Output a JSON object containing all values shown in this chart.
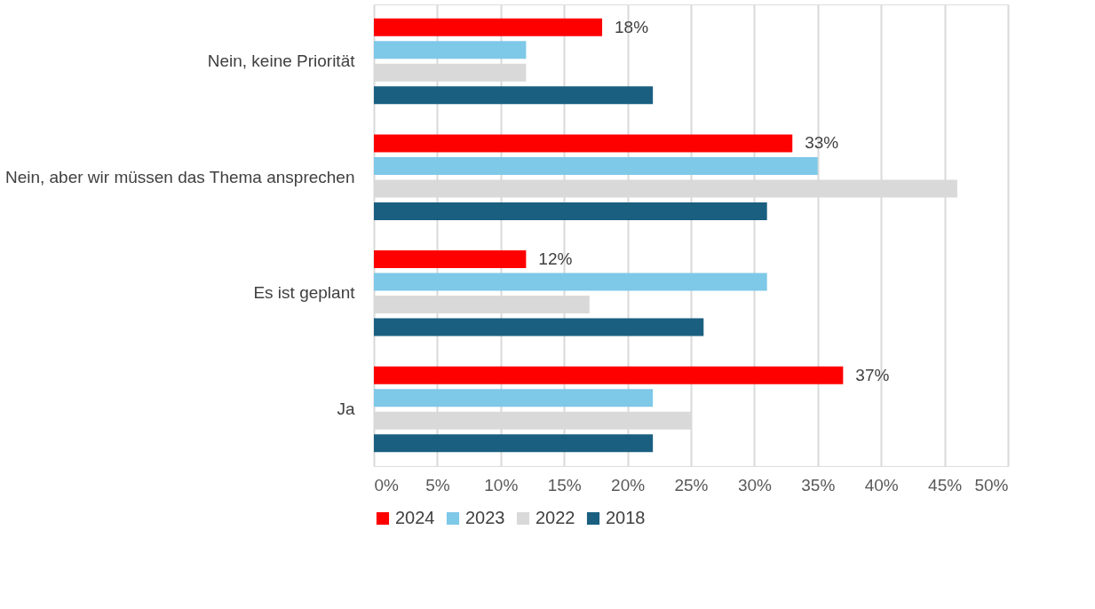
{
  "chart_data": {
    "type": "bar",
    "orientation": "horizontal",
    "categories": [
      "Nein, keine Priorität",
      "Nein, aber wir müssen das Thema ansprechen",
      "Es ist geplant",
      "Ja"
    ],
    "series": [
      {
        "name": "2024",
        "color": "#ff0000",
        "values": [
          18,
          33,
          12,
          37
        ],
        "value_labels": [
          "18%",
          "33%",
          "12%",
          "37%"
        ]
      },
      {
        "name": "2023",
        "color": "#7ec8e8",
        "values": [
          12,
          35,
          31,
          22
        ]
      },
      {
        "name": "2022",
        "color": "#d9d9d9",
        "values": [
          12,
          46,
          17,
          25
        ]
      },
      {
        "name": "2018",
        "color": "#1a5f80",
        "values": [
          22,
          31,
          26,
          22
        ]
      }
    ],
    "xlim": [
      0,
      50
    ],
    "xticks": [
      {
        "value": 0,
        "label": "0%"
      },
      {
        "value": 5,
        "label": "5%"
      },
      {
        "value": 10,
        "label": "10%"
      },
      {
        "value": 15,
        "label": "15%"
      },
      {
        "value": 20,
        "label": "20%"
      },
      {
        "value": 25,
        "label": "25%"
      },
      {
        "value": 30,
        "label": "30%"
      },
      {
        "value": 35,
        "label": "35%"
      },
      {
        "value": 40,
        "label": "40%"
      },
      {
        "value": 45,
        "label": "45%"
      },
      {
        "value": 50,
        "label": "50%"
      }
    ],
    "grid": "x",
    "legend": "bottom"
  }
}
